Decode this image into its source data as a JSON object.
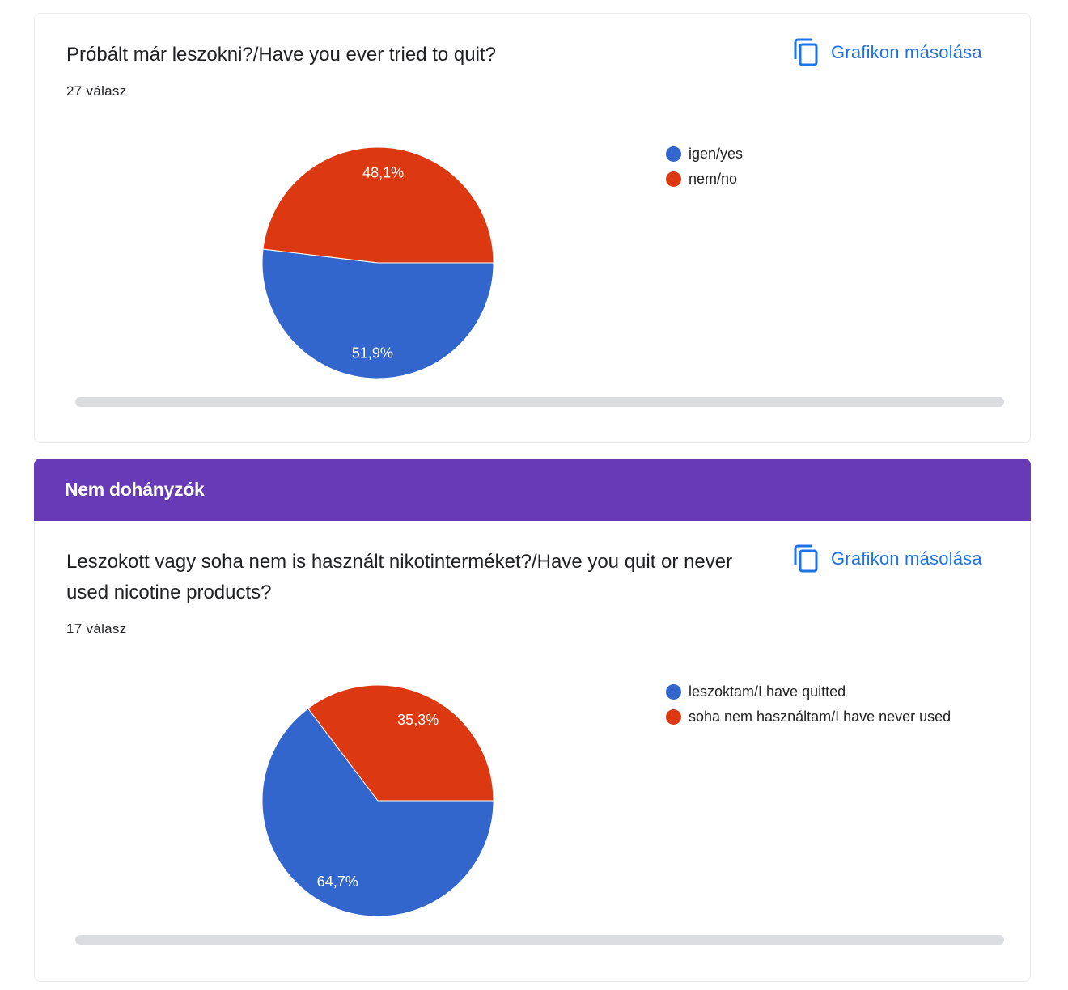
{
  "colors": {
    "blue": "#3366cc",
    "red": "#dc3912",
    "accent": "#1a73e8",
    "section": "#673ab7"
  },
  "section": {
    "title": "Nem dohányzók"
  },
  "cards": [
    {
      "question": "Próbált már leszokni?/Have you ever tried to quit?",
      "responses": "27 válasz",
      "copy_label": "Grafikon másolása",
      "copy_icon": "copy-icon"
    },
    {
      "question": "Leszokott vagy soha nem is használt nikotinterméket?/Have you quit or never used nicotine products?",
      "responses": "17 válasz",
      "copy_label": "Grafikon másolása",
      "copy_icon": "copy-icon"
    }
  ],
  "chart_data": [
    {
      "type": "pie",
      "categories": [
        "igen/yes",
        "nem/no"
      ],
      "values": [
        51.9,
        48.1
      ],
      "labels": [
        "51,9%",
        "48,1%"
      ],
      "colors": [
        "#3366cc",
        "#dc3912"
      ],
      "legend": "right"
    },
    {
      "type": "pie",
      "categories": [
        "leszoktam/I have quitted",
        "soha nem használtam/I have never used"
      ],
      "values": [
        64.7,
        35.3
      ],
      "labels": [
        "64,7%",
        "35,3%"
      ],
      "colors": [
        "#3366cc",
        "#dc3912"
      ],
      "legend": "right"
    }
  ]
}
